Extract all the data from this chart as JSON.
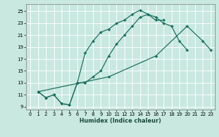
{
  "xlabel": "Humidex (Indice chaleur)",
  "bg_color": "#c8e8e0",
  "grid_color": "#e0f0ec",
  "line_color": "#1a6e5e",
  "xlim": [
    -0.5,
    23.5
  ],
  "ylim": [
    8.5,
    26.2
  ],
  "xticks": [
    0,
    1,
    2,
    3,
    4,
    5,
    6,
    7,
    8,
    9,
    10,
    11,
    12,
    13,
    14,
    15,
    16,
    17,
    18,
    19,
    20,
    21,
    22,
    23
  ],
  "yticks": [
    9,
    11,
    13,
    15,
    17,
    19,
    21,
    23,
    25
  ],
  "line1": {
    "x": [
      1,
      2,
      3,
      4,
      5,
      6,
      7,
      8,
      9,
      10,
      11,
      12,
      13,
      14,
      15,
      16,
      17
    ],
    "y": [
      11.5,
      10.5,
      11,
      9.5,
      9.3,
      13,
      18,
      20,
      21.5,
      22,
      23,
      23.5,
      24.5,
      25.2,
      24.5,
      23.5,
      23.5
    ]
  },
  "line2": {
    "x": [
      1,
      2,
      3,
      4,
      5,
      6,
      7,
      8,
      9,
      10,
      11,
      12,
      13,
      14,
      15,
      16,
      17,
      18,
      19,
      20
    ],
    "y": [
      11.5,
      10.5,
      11,
      9.5,
      9.3,
      13,
      13,
      14,
      15,
      17.5,
      19.5,
      21,
      22.5,
      24,
      24.5,
      24,
      23,
      22.5,
      20,
      18.5
    ]
  },
  "line3": {
    "x": [
      1,
      10,
      16,
      20,
      22,
      23
    ],
    "y": [
      11.5,
      14,
      17.5,
      22.5,
      20,
      18.5
    ]
  }
}
